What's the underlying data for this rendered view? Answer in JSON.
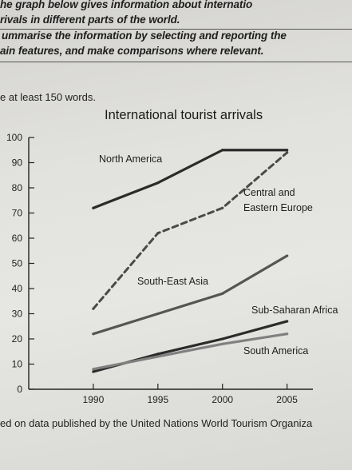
{
  "instructions": {
    "line1": "he graph below gives information about internatio",
    "line2": "rivals in different parts of the world.",
    "line3": "ummarise the information by selecting and reporting the",
    "line4": "ain features, and make comparisons where relevant.",
    "word_note": "e at least 150 words."
  },
  "source_note": "ed on data published by the United Nations World Tourism Organiza",
  "chart_data": {
    "type": "line",
    "title": "International tourist arrivals",
    "xlabel": "",
    "ylabel": "",
    "x": [
      1990,
      1995,
      2000,
      2005
    ],
    "xlim": [
      1985,
      2007
    ],
    "ylim": [
      0,
      100
    ],
    "y_ticks": [
      0,
      10,
      20,
      30,
      40,
      50,
      60,
      70,
      80,
      90,
      100
    ],
    "grid": false,
    "legend": "inline labels",
    "series": [
      {
        "name": "North America",
        "values": [
          72,
          82,
          95,
          95
        ],
        "style": "solid",
        "color": "#2b2b2b"
      },
      {
        "name": "Central and Eastern Europe",
        "label_lines": [
          "Central and",
          "Eastern Europe"
        ],
        "values": [
          32,
          62,
          72,
          94
        ],
        "style": "dashed",
        "color": "#4a4a4a"
      },
      {
        "name": "South-East Asia",
        "values": [
          22,
          30,
          38,
          53
        ],
        "style": "solid",
        "color": "#555555"
      },
      {
        "name": "Sub-Saharan Africa",
        "values": [
          7,
          14,
          20,
          27
        ],
        "style": "solid",
        "color": "#2b2b2b"
      },
      {
        "name": "South America",
        "values": [
          8,
          13,
          18,
          22
        ],
        "style": "solid",
        "color": "#808080"
      }
    ]
  }
}
